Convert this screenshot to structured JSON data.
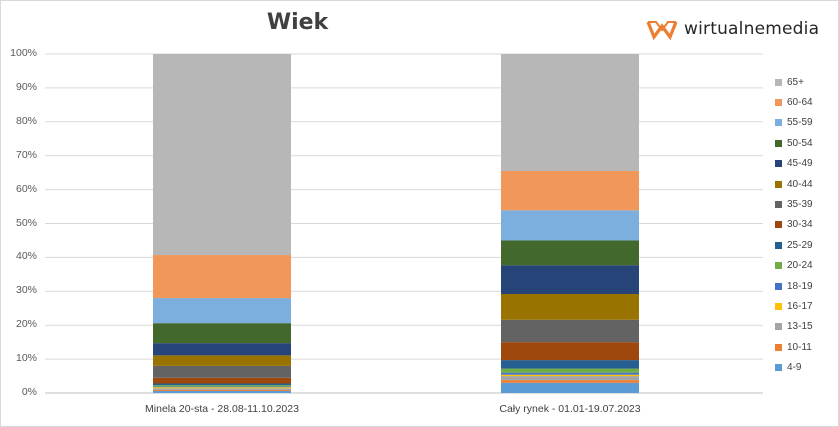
{
  "chart_data": {
    "type": "stacked-bar-100",
    "title": "Wiek",
    "categories": [
      "Minela 20-sta - 28.08-11.10.2023",
      "Cały rynek - 01.01-19.07.2023"
    ],
    "ylim": [
      0,
      100
    ],
    "yticks": [
      "0%",
      "10%",
      "20%",
      "30%",
      "40%",
      "50%",
      "60%",
      "70%",
      "80%",
      "90%",
      "100%"
    ],
    "series": [
      {
        "name": "4-9",
        "color": "#5B9BD5",
        "values": [
          0.6,
          3.0
        ]
      },
      {
        "name": "10-11",
        "color": "#ED7D31",
        "values": [
          0.3,
          0.8
        ]
      },
      {
        "name": "13-15",
        "color": "#A5A5A5",
        "values": [
          0.5,
          1.2
        ]
      },
      {
        "name": "16-17",
        "color": "#FFC000",
        "values": [
          0.3,
          0.4
        ]
      },
      {
        "name": "18-19",
        "color": "#4472C4",
        "values": [
          0.2,
          0.6
        ]
      },
      {
        "name": "20-24",
        "color": "#70AD47",
        "values": [
          0.4,
          1.2
        ]
      },
      {
        "name": "25-29",
        "color": "#255E91",
        "values": [
          0.5,
          2.5
        ]
      },
      {
        "name": "30-34",
        "color": "#9E480E",
        "values": [
          1.7,
          5.3
        ]
      },
      {
        "name": "35-39",
        "color": "#636363",
        "values": [
          3.5,
          6.6
        ]
      },
      {
        "name": "40-44",
        "color": "#997300",
        "values": [
          3.1,
          7.6
        ]
      },
      {
        "name": "45-49",
        "color": "#264478",
        "values": [
          3.6,
          8.5
        ]
      },
      {
        "name": "50-54",
        "color": "#43682B",
        "values": [
          5.9,
          7.3
        ]
      },
      {
        "name": "55-59",
        "color": "#7CAFDD",
        "values": [
          7.4,
          8.9
        ]
      },
      {
        "name": "60-64",
        "color": "#F1975A",
        "values": [
          12.7,
          11.6
        ]
      },
      {
        "name": "65+",
        "color": "#B7B7B7",
        "values": [
          59.3,
          34.5
        ]
      }
    ]
  },
  "logo": {
    "text": "wirtualnemedia",
    "color": "#ED7D31"
  }
}
